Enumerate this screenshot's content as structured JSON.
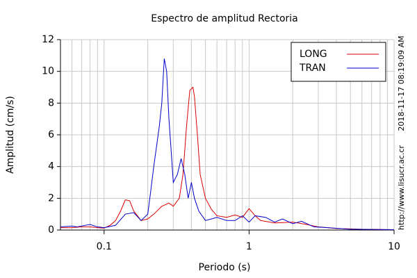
{
  "chart_data": {
    "type": "line",
    "title": "Espectro de amplitud Rectoria",
    "xlabel": "Periodo (s)",
    "ylabel": "Amplitud (cm/s)",
    "xscale": "log",
    "xlim": [
      0.05,
      10
    ],
    "xticks": [
      0.1,
      1,
      10
    ],
    "ylim": [
      0,
      12
    ],
    "yticks": [
      0,
      2,
      4,
      6,
      8,
      10,
      12
    ],
    "grid": true,
    "legend": "upper right",
    "annotations": [
      "2018-11-17 08:19:09 AM",
      "http://www.lisucr.ac.cr"
    ],
    "series": [
      {
        "name": "LONG",
        "color": "#dd0000",
        "x": [
          0.05,
          0.06,
          0.07,
          0.08,
          0.09,
          0.1,
          0.11,
          0.12,
          0.13,
          0.14,
          0.15,
          0.16,
          0.18,
          0.2,
          0.22,
          0.25,
          0.28,
          0.3,
          0.33,
          0.35,
          0.37,
          0.39,
          0.41,
          0.42,
          0.44,
          0.46,
          0.5,
          0.55,
          0.6,
          0.7,
          0.8,
          0.9,
          1.0,
          1.1,
          1.2,
          1.5,
          2.0,
          2.5,
          3.0,
          4.0,
          6.0,
          10.0
        ],
        "values": [
          0.15,
          0.15,
          0.2,
          0.2,
          0.15,
          0.12,
          0.3,
          0.6,
          1.2,
          1.9,
          1.85,
          1.2,
          0.6,
          0.7,
          1.0,
          1.5,
          1.7,
          1.5,
          2.0,
          3.5,
          6.5,
          8.8,
          9.0,
          8.4,
          6.0,
          3.5,
          2.0,
          1.3,
          0.9,
          0.8,
          0.95,
          0.8,
          1.35,
          0.9,
          0.6,
          0.45,
          0.5,
          0.35,
          0.2,
          0.1,
          0.05,
          0.02
        ]
      },
      {
        "name": "TRAN",
        "color": "#0000cc",
        "x": [
          0.05,
          0.06,
          0.065,
          0.08,
          0.09,
          0.1,
          0.12,
          0.14,
          0.16,
          0.18,
          0.2,
          0.21,
          0.22,
          0.24,
          0.25,
          0.26,
          0.27,
          0.28,
          0.29,
          0.3,
          0.32,
          0.34,
          0.36,
          0.38,
          0.4,
          0.42,
          0.45,
          0.5,
          0.55,
          0.6,
          0.7,
          0.8,
          0.9,
          1.0,
          1.1,
          1.3,
          1.5,
          1.7,
          2.0,
          2.3,
          2.8,
          3.5,
          5.0,
          10.0
        ],
        "values": [
          0.2,
          0.25,
          0.2,
          0.35,
          0.2,
          0.15,
          0.3,
          1.0,
          1.1,
          0.6,
          1.0,
          2.5,
          4.0,
          6.5,
          8.0,
          10.8,
          10.0,
          7.0,
          5.0,
          3.0,
          3.5,
          4.5,
          3.5,
          2.0,
          3.0,
          2.0,
          1.2,
          0.6,
          0.7,
          0.8,
          0.6,
          0.6,
          0.9,
          0.5,
          0.9,
          0.8,
          0.5,
          0.7,
          0.4,
          0.55,
          0.2,
          0.15,
          0.05,
          0.02
        ]
      }
    ]
  }
}
